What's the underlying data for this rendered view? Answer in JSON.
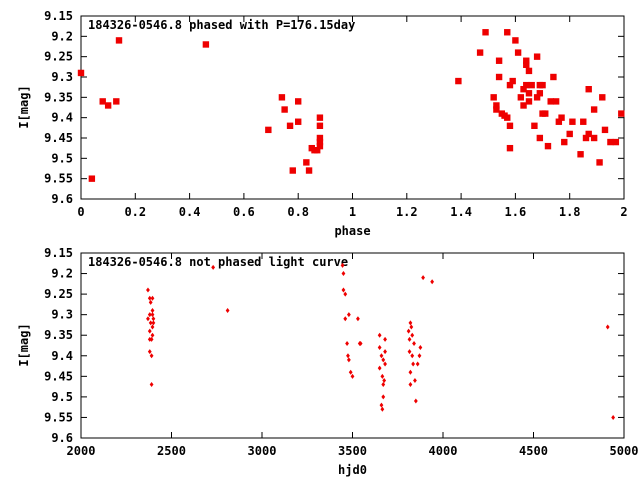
{
  "chart_data": [
    {
      "type": "scatter",
      "title": "184326-0546.8 phased with P=176.15day",
      "xlabel": "phase",
      "ylabel": "I[mag]",
      "xlim": [
        0,
        2
      ],
      "ylim": [
        9.15,
        9.6
      ],
      "y_inverted": true,
      "x_ticks": [
        "0",
        "0.2",
        "0.4",
        "0.6",
        "0.8",
        "1",
        "1.2",
        "1.4",
        "1.6",
        "1.8",
        "2"
      ],
      "x_tick_values": [
        0,
        0.2,
        0.4,
        0.6,
        0.8,
        1.0,
        1.2,
        1.4,
        1.6,
        1.8,
        2.0
      ],
      "y_ticks": [
        "9.15",
        "9.2",
        "9.25",
        "9.3",
        "9.35",
        "9.4",
        "9.45",
        "9.5",
        "9.55",
        "9.6"
      ],
      "y_tick_values": [
        9.15,
        9.2,
        9.25,
        9.3,
        9.35,
        9.4,
        9.45,
        9.5,
        9.55,
        9.6
      ],
      "color": "#ee0000",
      "points": [
        [
          0.0,
          9.29
        ],
        [
          0.04,
          9.55
        ],
        [
          0.08,
          9.36
        ],
        [
          0.1,
          9.37
        ],
        [
          0.13,
          9.36
        ],
        [
          0.14,
          9.21
        ],
        [
          0.46,
          9.22
        ],
        [
          0.69,
          9.43
        ],
        [
          0.74,
          9.35
        ],
        [
          0.75,
          9.38
        ],
        [
          0.77,
          9.42
        ],
        [
          0.78,
          9.53
        ],
        [
          0.8,
          9.41
        ],
        [
          0.8,
          9.36
        ],
        [
          0.83,
          9.51
        ],
        [
          0.84,
          9.53
        ],
        [
          0.85,
          9.475
        ],
        [
          0.86,
          9.48
        ],
        [
          0.87,
          9.48
        ],
        [
          0.88,
          9.4
        ],
        [
          0.88,
          9.42
        ],
        [
          0.88,
          9.45
        ],
        [
          0.88,
          9.46
        ],
        [
          0.88,
          9.47
        ],
        [
          1.39,
          9.31
        ],
        [
          1.47,
          9.24
        ],
        [
          1.49,
          9.19
        ],
        [
          1.52,
          9.35
        ],
        [
          1.53,
          9.38
        ],
        [
          1.53,
          9.37
        ],
        [
          1.54,
          9.26
        ],
        [
          1.54,
          9.3
        ],
        [
          1.55,
          9.39
        ],
        [
          1.56,
          9.395
        ],
        [
          1.57,
          9.19
        ],
        [
          1.57,
          9.4
        ],
        [
          1.58,
          9.32
        ],
        [
          1.58,
          9.42
        ],
        [
          1.58,
          9.475
        ],
        [
          1.59,
          9.31
        ],
        [
          1.6,
          9.21
        ],
        [
          1.61,
          9.24
        ],
        [
          1.62,
          9.35
        ],
        [
          1.63,
          9.33
        ],
        [
          1.63,
          9.37
        ],
        [
          1.64,
          9.32
        ],
        [
          1.64,
          9.27
        ],
        [
          1.64,
          9.26
        ],
        [
          1.65,
          9.285
        ],
        [
          1.65,
          9.34
        ],
        [
          1.65,
          9.36
        ],
        [
          1.66,
          9.32
        ],
        [
          1.67,
          9.42
        ],
        [
          1.68,
          9.25
        ],
        [
          1.68,
          9.35
        ],
        [
          1.69,
          9.32
        ],
        [
          1.69,
          9.34
        ],
        [
          1.69,
          9.45
        ],
        [
          1.7,
          9.32
        ],
        [
          1.7,
          9.39
        ],
        [
          1.71,
          9.39
        ],
        [
          1.72,
          9.47
        ],
        [
          1.73,
          9.36
        ],
        [
          1.74,
          9.3
        ],
        [
          1.75,
          9.36
        ],
        [
          1.76,
          9.41
        ],
        [
          1.77,
          9.4
        ],
        [
          1.78,
          9.46
        ],
        [
          1.8,
          9.44
        ],
        [
          1.81,
          9.41
        ],
        [
          1.84,
          9.49
        ],
        [
          1.85,
          9.41
        ],
        [
          1.86,
          9.45
        ],
        [
          1.87,
          9.33
        ],
        [
          1.87,
          9.44
        ],
        [
          1.89,
          9.45
        ],
        [
          1.89,
          9.38
        ],
        [
          1.91,
          9.51
        ],
        [
          1.92,
          9.35
        ],
        [
          1.93,
          9.43
        ],
        [
          1.95,
          9.46
        ],
        [
          1.97,
          9.46
        ],
        [
          1.99,
          9.39
        ]
      ]
    },
    {
      "type": "scatter",
      "title": "184326-0546.8 not phased light curve",
      "xlabel": "hjd0",
      "ylabel": "I[mag]",
      "xlim": [
        2000,
        5000
      ],
      "ylim": [
        9.15,
        9.6
      ],
      "y_inverted": true,
      "x_ticks": [
        "2000",
        "2500",
        "3000",
        "3500",
        "4000",
        "4500",
        "5000"
      ],
      "x_tick_values": [
        2000,
        2500,
        3000,
        3500,
        4000,
        4500,
        5000
      ],
      "y_ticks": [
        "9.15",
        "9.2",
        "9.25",
        "9.3",
        "9.35",
        "9.4",
        "9.45",
        "9.5",
        "9.55",
        "9.6"
      ],
      "y_tick_values": [
        9.15,
        9.2,
        9.25,
        9.3,
        9.35,
        9.4,
        9.45,
        9.5,
        9.55,
        9.6
      ],
      "color": "#ee0000",
      "points": [
        [
          2370,
          9.24
        ],
        [
          2370,
          9.31
        ],
        [
          2380,
          9.26
        ],
        [
          2380,
          9.3
        ],
        [
          2380,
          9.34
        ],
        [
          2380,
          9.36
        ],
        [
          2380,
          9.39
        ],
        [
          2385,
          9.27
        ],
        [
          2385,
          9.32
        ],
        [
          2390,
          9.4
        ],
        [
          2390,
          9.36
        ],
        [
          2390,
          9.47
        ],
        [
          2395,
          9.26
        ],
        [
          2395,
          9.29
        ],
        [
          2395,
          9.3
        ],
        [
          2395,
          9.33
        ],
        [
          2395,
          9.35
        ],
        [
          2400,
          9.31
        ],
        [
          2400,
          9.32
        ],
        [
          2730,
          9.185
        ],
        [
          2810,
          9.29
        ],
        [
          3445,
          9.18
        ],
        [
          3450,
          9.2
        ],
        [
          3450,
          9.24
        ],
        [
          3460,
          9.25
        ],
        [
          3460,
          9.31
        ],
        [
          3470,
          9.37
        ],
        [
          3475,
          9.4
        ],
        [
          3480,
          9.3
        ],
        [
          3480,
          9.41
        ],
        [
          3490,
          9.44
        ],
        [
          3500,
          9.45
        ],
        [
          3530,
          9.31
        ],
        [
          3540,
          9.37
        ],
        [
          3545,
          9.37
        ],
        [
          3650,
          9.35
        ],
        [
          3650,
          9.38
        ],
        [
          3650,
          9.43
        ],
        [
          3660,
          9.4
        ],
        [
          3660,
          9.52
        ],
        [
          3665,
          9.53
        ],
        [
          3665,
          9.45
        ],
        [
          3670,
          9.41
        ],
        [
          3670,
          9.47
        ],
        [
          3670,
          9.5
        ],
        [
          3675,
          9.46
        ],
        [
          3680,
          9.39
        ],
        [
          3680,
          9.36
        ],
        [
          3680,
          9.42
        ],
        [
          3810,
          9.34
        ],
        [
          3815,
          9.36
        ],
        [
          3815,
          9.39
        ],
        [
          3820,
          9.32
        ],
        [
          3820,
          9.44
        ],
        [
          3820,
          9.47
        ],
        [
          3825,
          9.33
        ],
        [
          3830,
          9.35
        ],
        [
          3830,
          9.4
        ],
        [
          3835,
          9.42
        ],
        [
          3840,
          9.37
        ],
        [
          3845,
          9.46
        ],
        [
          3850,
          9.51
        ],
        [
          3860,
          9.42
        ],
        [
          3870,
          9.4
        ],
        [
          3875,
          9.38
        ],
        [
          3890,
          9.21
        ],
        [
          3940,
          9.22
        ],
        [
          4910,
          9.33
        ],
        [
          4940,
          9.55
        ]
      ]
    }
  ]
}
